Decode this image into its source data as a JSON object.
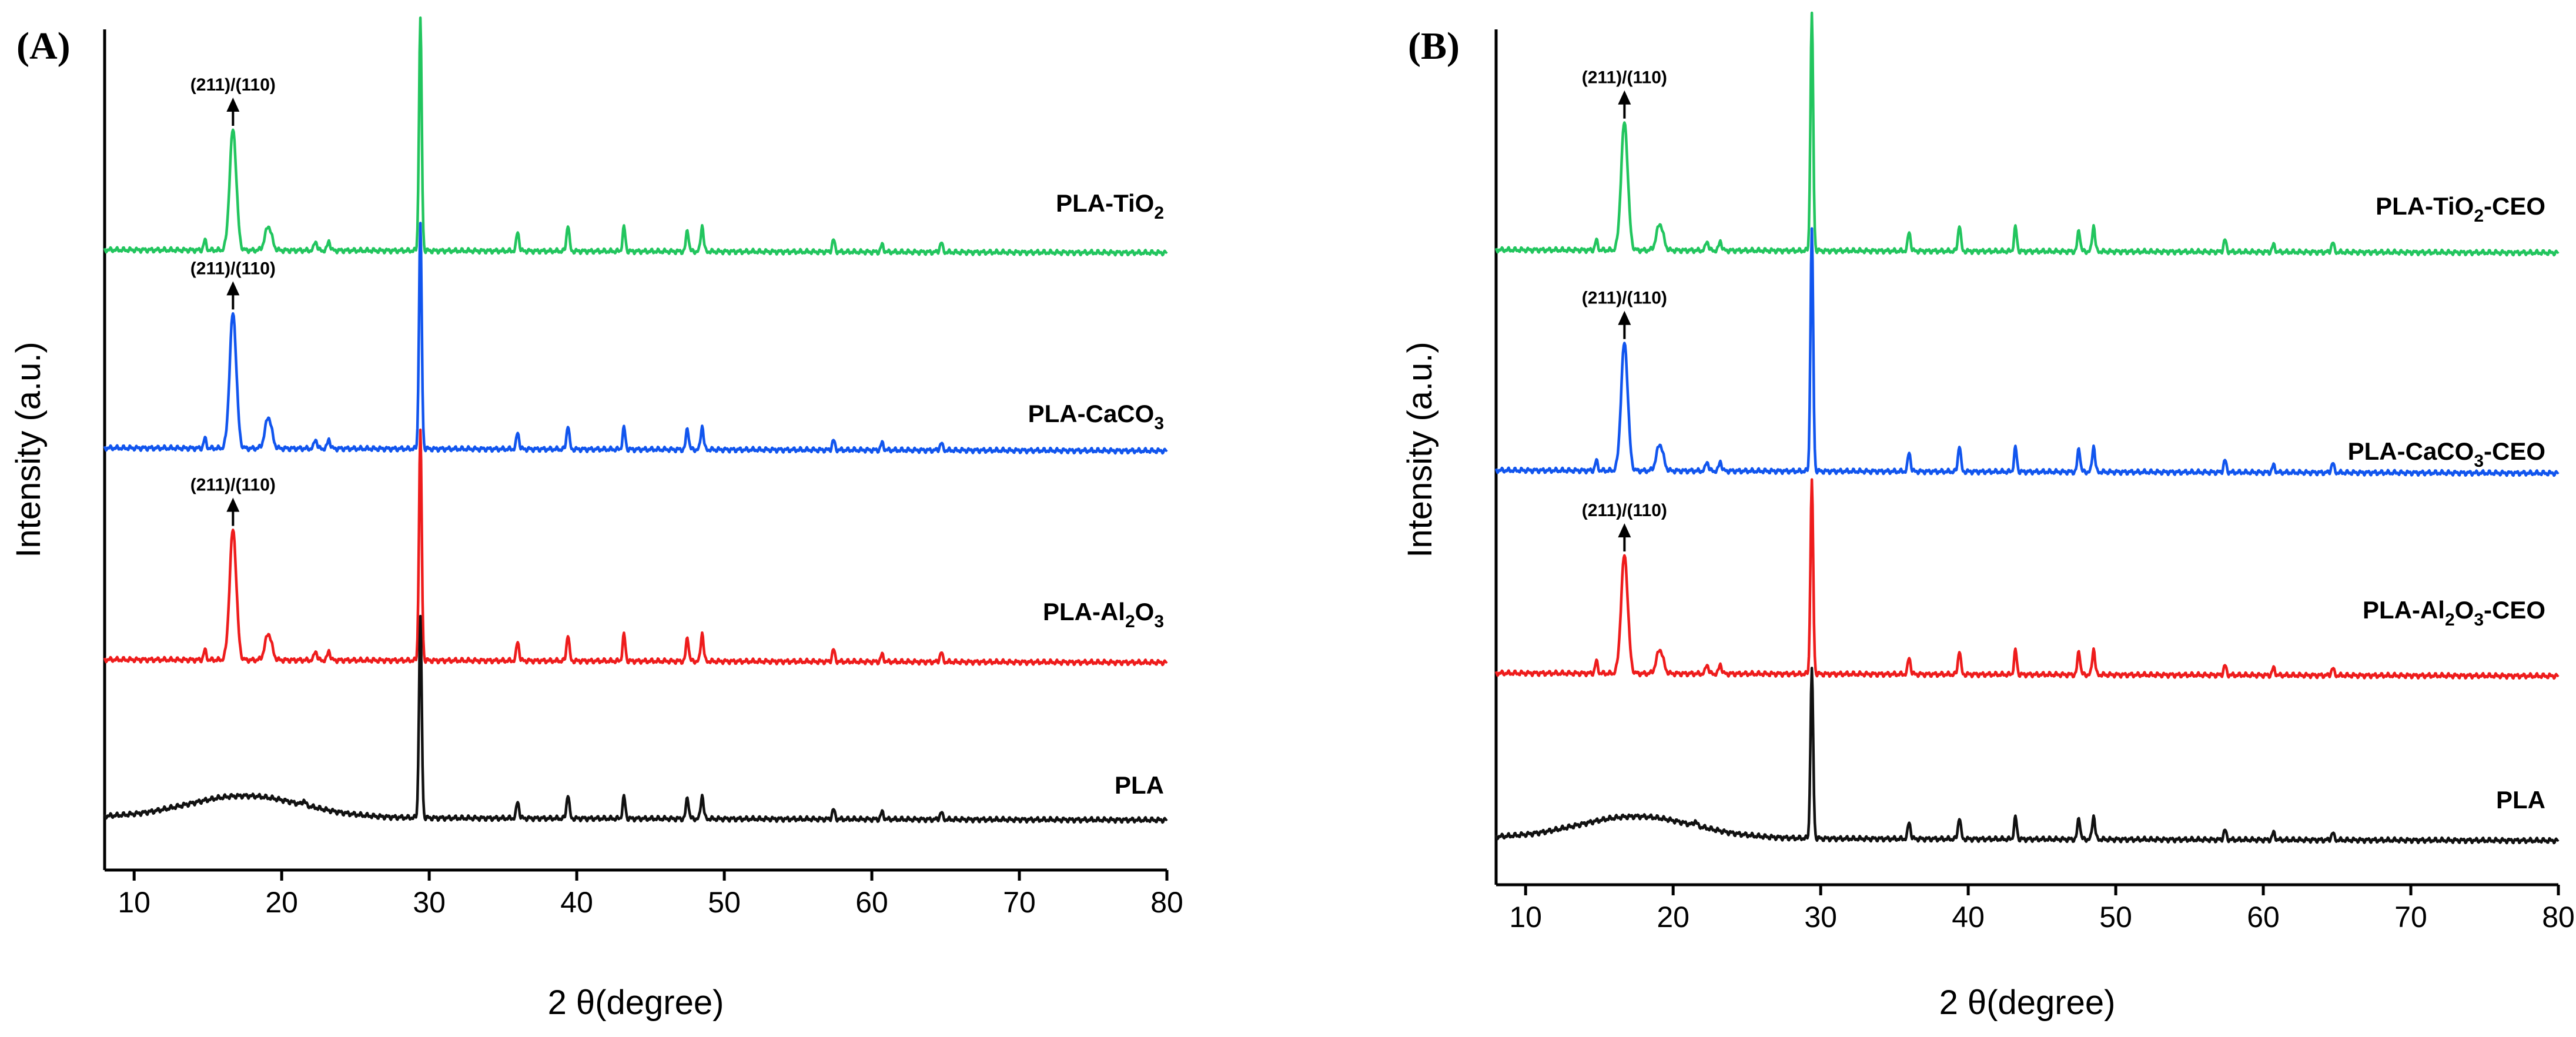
{
  "chart_data": [
    {
      "type": "line",
      "panel": "(A)",
      "xlabel": "2 θ(degree)",
      "ylabel": "Intensity (a.u.)",
      "xlim": [
        8,
        80
      ],
      "xticks": [
        10,
        20,
        30,
        40,
        50,
        60,
        70,
        80
      ],
      "yticks_shown": false,
      "annotations": [
        {
          "text": "(211)/(110)",
          "x": 16.7,
          "series": "PLA-TiO2"
        },
        {
          "text": "(211)/(110)",
          "x": 16.7,
          "series": "PLA-CaCO3"
        },
        {
          "text": "(211)/(110)",
          "x": 16.7,
          "series": "PLA-Al2O3"
        }
      ],
      "series": [
        {
          "name": "PLA-TiO2",
          "label_main": "PLA-TiO",
          "label_sub": "2",
          "label_suffix": "",
          "color": "#22c55e",
          "offset": 3,
          "amorphous_hump": false,
          "peaks": [
            [
              14.8,
              0.04
            ],
            [
              16.7,
              0.5
            ],
            [
              19.1,
              0.1
            ],
            [
              22.3,
              0.04
            ],
            [
              23.2,
              0.04
            ],
            [
              29.4,
              0.96
            ],
            [
              36.0,
              0.08
            ],
            [
              39.4,
              0.11
            ],
            [
              43.2,
              0.1
            ],
            [
              47.5,
              0.09
            ],
            [
              48.5,
              0.11
            ],
            [
              57.4,
              0.05
            ],
            [
              60.7,
              0.03
            ],
            [
              64.7,
              0.04
            ]
          ]
        },
        {
          "name": "PLA-CaCO3",
          "label_main": "PLA-CaCO",
          "label_sub": "3",
          "label_suffix": "",
          "color": "#1155ee",
          "offset": 2,
          "amorphous_hump": false,
          "peaks": [
            [
              14.8,
              0.04
            ],
            [
              16.7,
              0.56
            ],
            [
              19.1,
              0.13
            ],
            [
              22.3,
              0.04
            ],
            [
              23.2,
              0.04
            ],
            [
              29.4,
              0.93
            ],
            [
              36.0,
              0.07
            ],
            [
              39.4,
              0.1
            ],
            [
              43.2,
              0.09
            ],
            [
              47.5,
              0.09
            ],
            [
              48.5,
              0.1
            ],
            [
              57.4,
              0.04
            ],
            [
              60.7,
              0.03
            ],
            [
              64.7,
              0.03
            ]
          ]
        },
        {
          "name": "PLA-Al2O3",
          "label_main": "PLA-Al",
          "label_sub": "2",
          "label_suffix": "O",
          "label_sub2": "3",
          "color": "#ee1c1c",
          "offset": 1,
          "amorphous_hump": false,
          "peaks": [
            [
              14.8,
              0.04
            ],
            [
              16.7,
              0.54
            ],
            [
              19.1,
              0.11
            ],
            [
              22.3,
              0.04
            ],
            [
              23.2,
              0.04
            ],
            [
              29.4,
              0.95
            ],
            [
              36.0,
              0.08
            ],
            [
              39.4,
              0.11
            ],
            [
              43.2,
              0.11
            ],
            [
              47.5,
              0.1
            ],
            [
              48.5,
              0.12
            ],
            [
              57.4,
              0.05
            ],
            [
              60.7,
              0.03
            ],
            [
              64.7,
              0.04
            ]
          ]
        },
        {
          "name": "PLA",
          "label_main": "PLA",
          "label_sub": "",
          "label_suffix": "",
          "color": "#111111",
          "offset": 0,
          "amorphous_hump": true,
          "peaks": [
            [
              21.5,
              0.02
            ],
            [
              29.4,
              0.83
            ],
            [
              36.0,
              0.07
            ],
            [
              39.4,
              0.1
            ],
            [
              43.2,
              0.09
            ],
            [
              47.5,
              0.09
            ],
            [
              48.5,
              0.1
            ],
            [
              57.4,
              0.04
            ],
            [
              60.7,
              0.03
            ],
            [
              64.7,
              0.03
            ]
          ]
        }
      ]
    },
    {
      "type": "line",
      "panel": "(B)",
      "xlabel": "2 θ(degree)",
      "ylabel": "Intensity (a.u.)",
      "xlim": [
        8,
        80
      ],
      "xticks": [
        10,
        20,
        30,
        40,
        50,
        60,
        70,
        80
      ],
      "yticks_shown": false,
      "annotations": [
        {
          "text": "(211)/(110)",
          "x": 16.7,
          "series": "PLA-TiO2-CEO"
        },
        {
          "text": "(211)/(110)",
          "x": 16.7,
          "series": "PLA-CaCO3-CEO"
        },
        {
          "text": "(211)/(110)",
          "x": 16.7,
          "series": "PLA-Al2O3-CEO"
        }
      ],
      "series": [
        {
          "name": "PLA-TiO2-CEO",
          "label_main": "PLA-TiO",
          "label_sub": "2",
          "label_suffix": "-CEO",
          "color": "#22c55e",
          "offset": 3,
          "amorphous_hump": false,
          "peaks": [
            [
              14.8,
              0.04
            ],
            [
              16.7,
              0.53
            ],
            [
              19.1,
              0.11
            ],
            [
              22.3,
              0.04
            ],
            [
              23.2,
              0.04
            ],
            [
              29.4,
              0.98
            ],
            [
              36.0,
              0.08
            ],
            [
              39.4,
              0.11
            ],
            [
              43.2,
              0.1
            ],
            [
              47.5,
              0.09
            ],
            [
              48.5,
              0.11
            ],
            [
              57.4,
              0.05
            ],
            [
              60.7,
              0.03
            ],
            [
              64.7,
              0.04
            ]
          ]
        },
        {
          "name": "PLA-CaCO3-CEO",
          "label_main": "PLA-CaCO",
          "label_sub": "3",
          "label_suffix": "-CEO",
          "color": "#1155ee",
          "offset": 2,
          "amorphous_hump": false,
          "peaks": [
            [
              14.8,
              0.04
            ],
            [
              16.7,
              0.53
            ],
            [
              19.1,
              0.11
            ],
            [
              22.3,
              0.04
            ],
            [
              23.2,
              0.04
            ],
            [
              29.4,
              1.0
            ],
            [
              36.0,
              0.08
            ],
            [
              39.4,
              0.11
            ],
            [
              43.2,
              0.1
            ],
            [
              47.5,
              0.1
            ],
            [
              48.5,
              0.11
            ],
            [
              57.4,
              0.05
            ],
            [
              60.7,
              0.03
            ],
            [
              64.7,
              0.04
            ]
          ]
        },
        {
          "name": "PLA-Al2O3-CEO",
          "label_main": "PLA-Al",
          "label_sub": "2",
          "label_suffix": "O",
          "label_sub2": "3",
          "label_suffix2": "-CEO",
          "color": "#ee1c1c",
          "offset": 1,
          "amorphous_hump": false,
          "peaks": [
            [
              14.8,
              0.05
            ],
            [
              16.7,
              0.49
            ],
            [
              19.1,
              0.1
            ],
            [
              22.3,
              0.04
            ],
            [
              23.2,
              0.04
            ],
            [
              29.4,
              0.8
            ],
            [
              36.0,
              0.07
            ],
            [
              39.4,
              0.1
            ],
            [
              43.2,
              0.1
            ],
            [
              47.5,
              0.1
            ],
            [
              48.5,
              0.11
            ],
            [
              57.4,
              0.04
            ],
            [
              60.7,
              0.03
            ],
            [
              64.7,
              0.03
            ]
          ]
        },
        {
          "name": "PLA",
          "label_main": "PLA",
          "label_sub": "",
          "label_suffix": "",
          "color": "#111111",
          "offset": 0,
          "amorphous_hump": true,
          "peaks": [
            [
              21.5,
              0.02
            ],
            [
              29.4,
              0.7
            ],
            [
              36.0,
              0.07
            ],
            [
              39.4,
              0.09
            ],
            [
              43.2,
              0.09
            ],
            [
              47.5,
              0.09
            ],
            [
              48.5,
              0.1
            ],
            [
              57.4,
              0.04
            ],
            [
              60.7,
              0.03
            ],
            [
              64.7,
              0.03
            ]
          ]
        }
      ]
    }
  ]
}
